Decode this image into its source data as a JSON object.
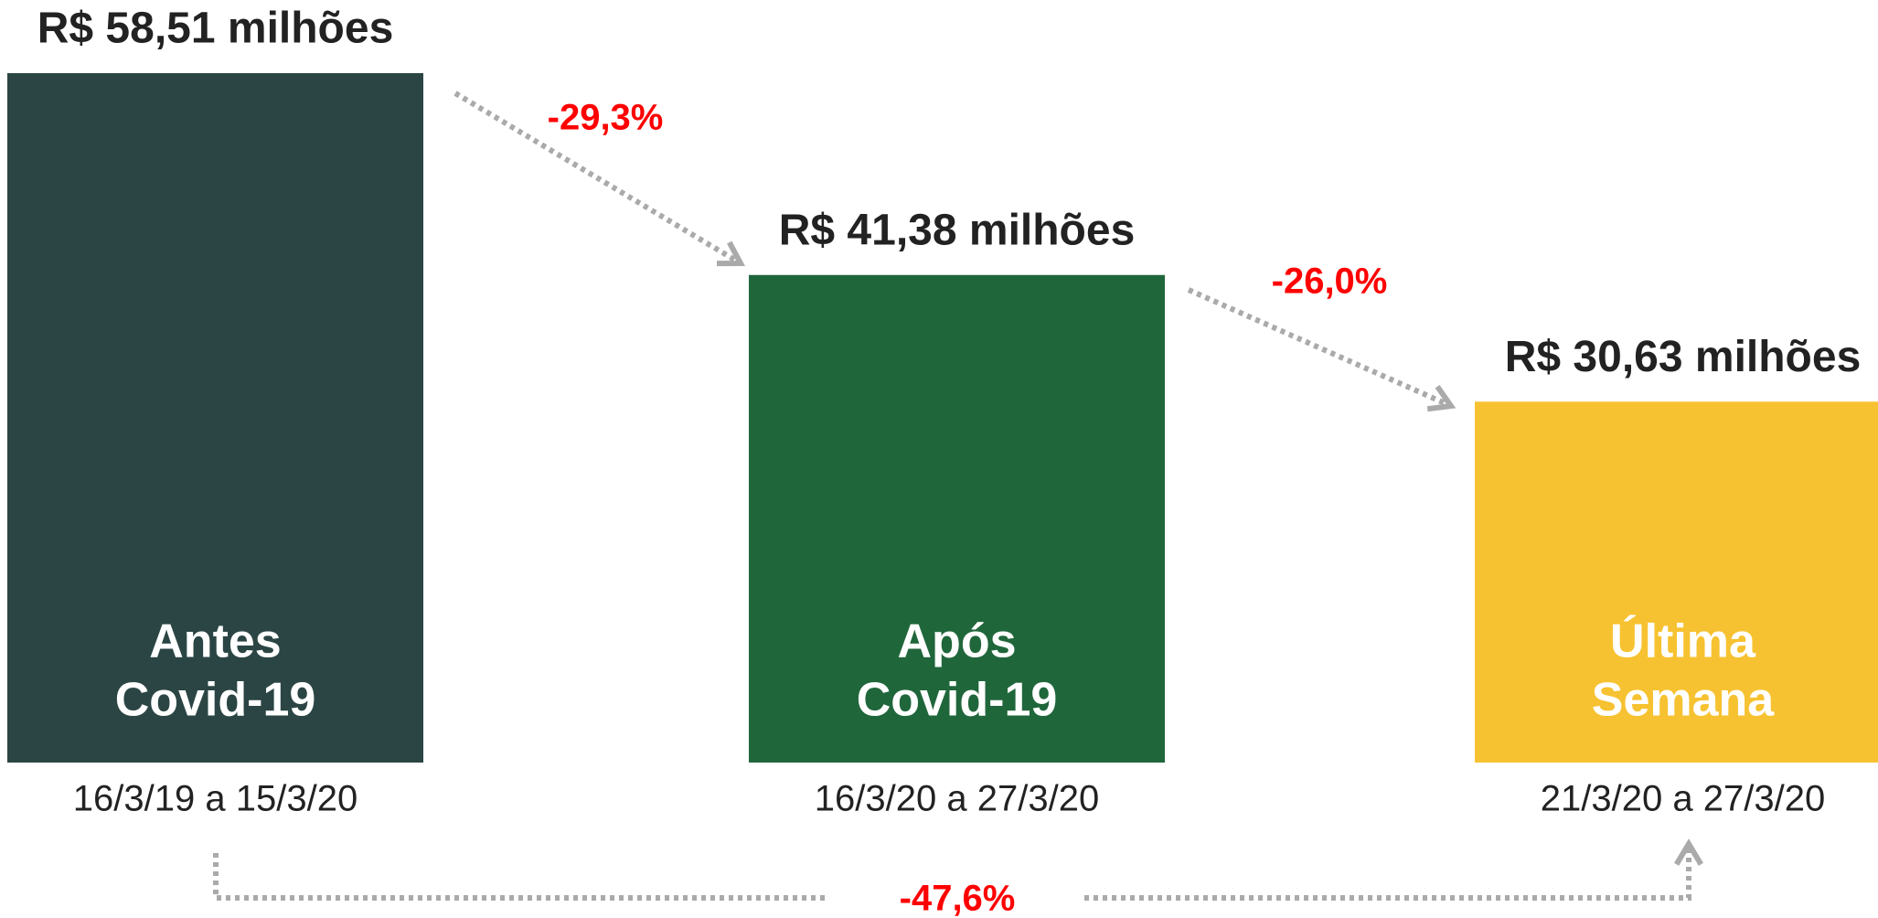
{
  "chart_data": {
    "type": "bar",
    "categories": [
      [
        "Antes",
        "Covid-19"
      ],
      [
        "Após",
        "Covid-19"
      ],
      [
        "Última",
        "Semana"
      ]
    ],
    "values": [
      58.51,
      41.38,
      30.63
    ],
    "value_labels": [
      "R$ 58,51 milhões",
      "R$ 41,38 milhões",
      "R$ 30,63 milhões"
    ],
    "periods": [
      "16/3/19 a 15/3/20",
      "16/3/20 a 27/3/20",
      "21/3/20 a 27/3/20"
    ],
    "colors": [
      "#2b4544",
      "#20663b",
      "#f7c231"
    ],
    "annotations": [
      "-29,3%",
      "-26,0%",
      "-47,6%"
    ]
  }
}
